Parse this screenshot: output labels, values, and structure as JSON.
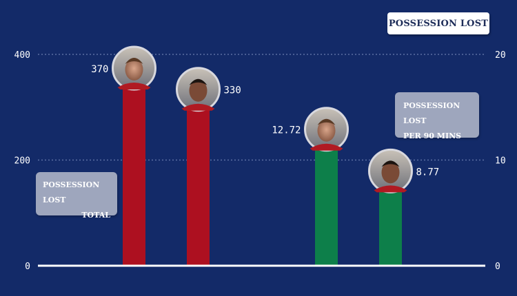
{
  "title": "POSSESSION LOST",
  "labels": {
    "total": [
      "POSSESSION LOST",
      "TOTAL"
    ],
    "per90": [
      "POSSESSION LOST",
      "PER 90 MINS"
    ]
  },
  "colors": {
    "background": "#132a68",
    "total_bar": "#ad1020",
    "per90_bar": "#0d7f4a",
    "grid": "#5c6fa3",
    "axis_text": "#ffffff"
  },
  "players": [
    {
      "avatar": "player-1-avatar"
    },
    {
      "avatar": "player-2-avatar"
    }
  ],
  "chart_data": {
    "type": "bar",
    "title": "POSSESSION LOST",
    "left_axis": {
      "ticks": [
        "0",
        "200",
        "400"
      ],
      "ylim": [
        0,
        400
      ]
    },
    "right_axis": {
      "ticks": [
        "0",
        "10",
        "20"
      ],
      "ylim": [
        0,
        20
      ]
    },
    "grid": true,
    "series": [
      {
        "name": "POSSESSION LOST TOTAL",
        "axis": "left",
        "values": [
          370,
          330
        ],
        "labels": [
          "370",
          "330"
        ]
      },
      {
        "name": "POSSESSION LOST PER 90 MINS",
        "axis": "right",
        "values": [
          12.72,
          8.77
        ],
        "labels": [
          "12.72",
          "8.77"
        ]
      }
    ]
  }
}
